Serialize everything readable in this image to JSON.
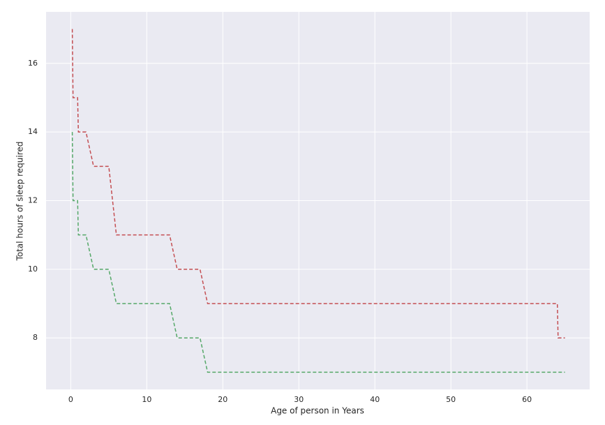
{
  "chart_data": {
    "type": "line",
    "xlabel": "Age of person in Years",
    "ylabel": "Total hours of sleep required",
    "x": [
      0.2,
      0.3,
      0.9,
      1,
      2,
      3,
      5,
      6,
      13,
      14,
      17,
      18,
      64,
      64.1,
      65
    ],
    "series": [
      {
        "color": "#c44e52",
        "values": [
          17,
          15,
          15,
          14,
          14,
          13,
          13,
          11,
          11,
          10,
          10,
          9,
          9,
          8,
          8
        ]
      },
      {
        "color": "#55a868",
        "values": [
          14,
          12,
          12,
          11,
          11,
          10,
          10,
          9,
          9,
          8,
          8,
          7,
          7,
          7,
          7
        ]
      }
    ],
    "xlim": [
      -3.25,
      68.25
    ],
    "ylim": [
      6.5,
      17.5
    ],
    "xticks": [
      0,
      10,
      20,
      30,
      40,
      50,
      60
    ],
    "yticks": [
      8,
      10,
      12,
      14,
      16
    ],
    "grid": true,
    "dashed": true
  }
}
